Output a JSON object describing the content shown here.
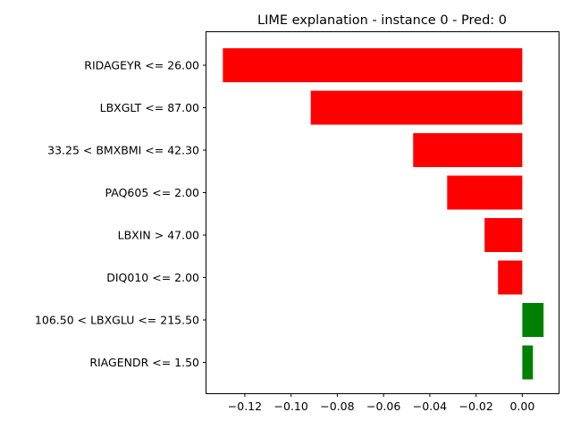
{
  "chart_data": {
    "type": "bar",
    "orientation": "horizontal",
    "title": "LIME explanation - instance 0 - Pred: 0",
    "xlabel": "",
    "ylabel": "",
    "xlim": [
      -0.1366,
      0.0157
    ],
    "grid": false,
    "x_ticks": [
      {
        "value": -0.12,
        "label": "−0.12"
      },
      {
        "value": -0.1,
        "label": "−0.10"
      },
      {
        "value": -0.08,
        "label": "−0.08"
      },
      {
        "value": -0.06,
        "label": "−0.06"
      },
      {
        "value": -0.04,
        "label": "−0.04"
      },
      {
        "value": -0.02,
        "label": "−0.02"
      },
      {
        "value": 0.0,
        "label": "0.00"
      }
    ],
    "categories": [
      "RIDAGEYR <= 26.00",
      "LBXGLT <= 87.00",
      "33.25 < BMXBMI <= 42.30",
      "PAQ605 <= 2.00",
      "LBXIN > 47.00",
      "DIQ010 <= 2.00",
      "106.50 < LBXGLU <= 215.50",
      "RIAGENDR <= 1.50"
    ],
    "values": [
      -0.1295,
      -0.0915,
      -0.0472,
      -0.0325,
      -0.0163,
      -0.0105,
      0.0092,
      0.0046
    ],
    "colors": {
      "negative": "#ff0000",
      "positive": "#008000"
    }
  }
}
